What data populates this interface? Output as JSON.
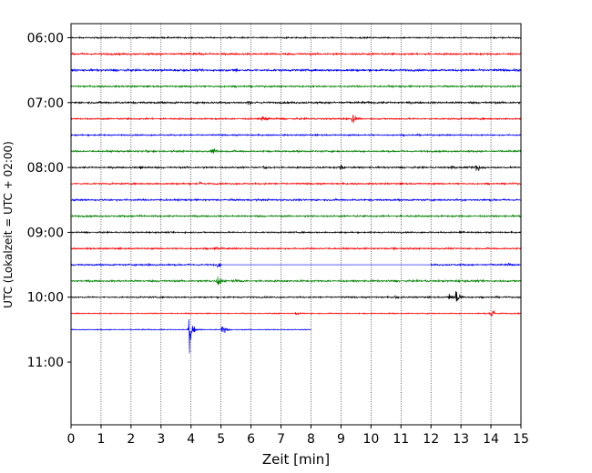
{
  "chart_data": {
    "type": "line",
    "title": "",
    "xlabel": "Zeit  [min]",
    "ylabel": "UTC (Lokalzeit = UTC + 02:00)",
    "xlim": [
      0,
      15
    ],
    "ylim_hours": [
      11.967,
      5.783
    ],
    "x_ticks": [
      0,
      1,
      2,
      3,
      4,
      5,
      6,
      7,
      8,
      9,
      10,
      11,
      12,
      13,
      14,
      15
    ],
    "y_ticks": [
      {
        "hour": 6,
        "label": "06:00"
      },
      {
        "hour": 7,
        "label": "07:00"
      },
      {
        "hour": 8,
        "label": "08:00"
      },
      {
        "hour": 9,
        "label": "09:00"
      },
      {
        "hour": 10,
        "label": "10:00"
      },
      {
        "hour": 11,
        "label": "11:00"
      }
    ],
    "grid": "vertical dotted lines at each minute",
    "trace_interval_minutes": 15,
    "colors": [
      "#000000",
      "#ff0000",
      "#0000ff",
      "#008000"
    ],
    "traces": [
      {
        "start": "06:00",
        "color": "#000000",
        "amp": 2.2,
        "end": 15,
        "events": []
      },
      {
        "start": "06:15",
        "color": "#ff0000",
        "amp": 2.8,
        "end": 15,
        "events": [
          {
            "t": 4.3,
            "a": 2
          }
        ]
      },
      {
        "start": "06:30",
        "color": "#0000ff",
        "amp": 3.2,
        "end": 15,
        "events": [
          {
            "t": 5.5,
            "a": 6
          }
        ]
      },
      {
        "start": "06:45",
        "color": "#008000",
        "amp": 2.6,
        "end": 15,
        "events": []
      },
      {
        "start": "07:00",
        "color": "#000000",
        "amp": 3.0,
        "end": 15,
        "events": [
          {
            "t": 5.9,
            "a": 5
          }
        ]
      },
      {
        "start": "07:15",
        "color": "#ff0000",
        "amp": 2.4,
        "end": 15,
        "events": [
          {
            "t": 6.4,
            "a": 9
          },
          {
            "t": 9.4,
            "a": 11
          }
        ]
      },
      {
        "start": "07:30",
        "color": "#0000ff",
        "amp": 2.2,
        "end": 15,
        "events": []
      },
      {
        "start": "07:45",
        "color": "#008000",
        "amp": 2.6,
        "end": 15,
        "events": [
          {
            "t": 2.5,
            "a": 4
          },
          {
            "t": 4.7,
            "a": 7
          }
        ]
      },
      {
        "start": "08:00",
        "color": "#000000",
        "amp": 2.6,
        "end": 15,
        "events": [
          {
            "t": 2.3,
            "a": 5
          },
          {
            "t": 6.4,
            "a": 4
          },
          {
            "t": 9.0,
            "a": 6
          },
          {
            "t": 12.7,
            "a": 5
          },
          {
            "t": 13.5,
            "a": 15
          }
        ]
      },
      {
        "start": "08:15",
        "color": "#ff0000",
        "amp": 2.4,
        "end": 15,
        "events": [
          {
            "t": 4.3,
            "a": 4
          }
        ]
      },
      {
        "start": "08:30",
        "color": "#0000ff",
        "amp": 2.8,
        "end": 15,
        "events": [
          {
            "t": 0.5,
            "a": 3
          }
        ]
      },
      {
        "start": "08:45",
        "color": "#008000",
        "amp": 2.6,
        "end": 15,
        "events": [
          {
            "t": 2.3,
            "a": 4
          }
        ]
      },
      {
        "start": "09:00",
        "color": "#000000",
        "amp": 2.2,
        "end": 15,
        "events": [
          {
            "t": 13.0,
            "a": 4
          }
        ]
      },
      {
        "start": "09:15",
        "color": "#ff0000",
        "amp": 2.4,
        "end": 15,
        "events": [
          {
            "t": 4.8,
            "a": 5
          },
          {
            "t": 10.7,
            "a": 4
          }
        ]
      },
      {
        "start": "09:30",
        "color": "#0000ff",
        "amp": 2.6,
        "end": 15,
        "events": [
          {
            "t": 2.6,
            "a": 4
          },
          {
            "t": 4.9,
            "a": 6
          },
          {
            "t": 14.6,
            "a": 4
          }
        ],
        "gap": [
          5.0,
          12.0
        ]
      },
      {
        "start": "09:45",
        "color": "#008000",
        "amp": 2.8,
        "end": 15,
        "events": [
          {
            "t": 4.9,
            "a": 14
          },
          {
            "t": 5.5,
            "a": 4
          }
        ]
      },
      {
        "start": "10:00",
        "color": "#000000",
        "amp": 2.2,
        "end": 15,
        "events": [
          {
            "t": 10.8,
            "a": 4
          },
          {
            "t": 12.6,
            "a": 7
          },
          {
            "t": 12.85,
            "a": 16
          }
        ]
      },
      {
        "start": "10:15",
        "color": "#ff0000",
        "amp": 1.6,
        "end": 15,
        "events": [
          {
            "t": 7.5,
            "a": 3
          },
          {
            "t": 14.0,
            "a": 13
          }
        ]
      },
      {
        "start": "10:30",
        "color": "#0000ff",
        "amp": 1.4,
        "end": 8.0,
        "events": [
          {
            "t": 3.95,
            "a": 33
          },
          {
            "t": 5.05,
            "a": 19
          }
        ]
      }
    ]
  }
}
